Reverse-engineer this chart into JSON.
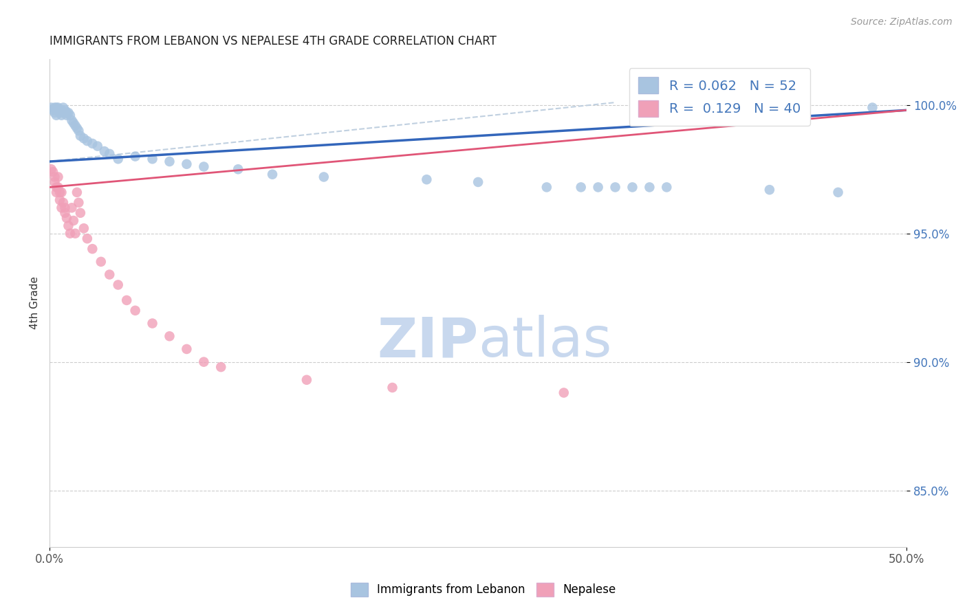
{
  "title": "IMMIGRANTS FROM LEBANON VS NEPALESE 4TH GRADE CORRELATION CHART",
  "source_text": "Source: ZipAtlas.com",
  "ylabel": "4th Grade",
  "x_min": 0.0,
  "x_max": 0.5,
  "y_min": 0.828,
  "y_max": 1.018,
  "x_ticks": [
    0.0,
    0.5
  ],
  "x_tick_labels": [
    "0.0%",
    "50.0%"
  ],
  "y_ticks": [
    0.85,
    0.9,
    0.95,
    1.0
  ],
  "y_tick_labels": [
    "85.0%",
    "90.0%",
    "95.0%",
    "100.0%"
  ],
  "blue_R": 0.062,
  "blue_N": 52,
  "pink_R": 0.129,
  "pink_N": 40,
  "blue_color": "#a8c4e0",
  "pink_color": "#f0a0b8",
  "blue_line_color": "#3366bb",
  "pink_line_color": "#e05577",
  "blue_dash_color": "#c0d0e0",
  "watermark_zip_color": "#c8d8ee",
  "watermark_atlas_color": "#c8d8ee",
  "legend_label_blue": "Immigrants from Lebanon",
  "legend_label_pink": "Nepalese",
  "blue_scatter_x": [
    0.001,
    0.002,
    0.003,
    0.003,
    0.004,
    0.004,
    0.005,
    0.005,
    0.006,
    0.006,
    0.007,
    0.007,
    0.008,
    0.008,
    0.009,
    0.01,
    0.01,
    0.011,
    0.012,
    0.013,
    0.014,
    0.015,
    0.016,
    0.017,
    0.018,
    0.02,
    0.022,
    0.025,
    0.028,
    0.032,
    0.035,
    0.04,
    0.05,
    0.06,
    0.07,
    0.08,
    0.09,
    0.11,
    0.13,
    0.16,
    0.22,
    0.25,
    0.29,
    0.31,
    0.32,
    0.33,
    0.34,
    0.35,
    0.36,
    0.42,
    0.46,
    0.48
  ],
  "blue_scatter_y": [
    0.999,
    0.998,
    0.999,
    0.997,
    0.999,
    0.996,
    0.999,
    0.998,
    0.998,
    0.997,
    0.998,
    0.996,
    0.997,
    0.999,
    0.998,
    0.997,
    0.996,
    0.997,
    0.996,
    0.994,
    0.993,
    0.992,
    0.991,
    0.99,
    0.988,
    0.987,
    0.986,
    0.985,
    0.984,
    0.982,
    0.981,
    0.979,
    0.98,
    0.979,
    0.978,
    0.977,
    0.976,
    0.975,
    0.973,
    0.972,
    0.971,
    0.97,
    0.968,
    0.968,
    0.968,
    0.968,
    0.968,
    0.968,
    0.968,
    0.967,
    0.966,
    0.999
  ],
  "pink_scatter_x": [
    0.001,
    0.002,
    0.003,
    0.003,
    0.004,
    0.004,
    0.005,
    0.005,
    0.006,
    0.006,
    0.007,
    0.007,
    0.008,
    0.009,
    0.009,
    0.01,
    0.011,
    0.012,
    0.013,
    0.014,
    0.015,
    0.016,
    0.017,
    0.018,
    0.02,
    0.022,
    0.025,
    0.03,
    0.035,
    0.04,
    0.045,
    0.05,
    0.06,
    0.07,
    0.08,
    0.09,
    0.1,
    0.15,
    0.2,
    0.3
  ],
  "pink_scatter_y": [
    0.975,
    0.974,
    0.972,
    0.97,
    0.968,
    0.966,
    0.972,
    0.968,
    0.966,
    0.963,
    0.96,
    0.966,
    0.962,
    0.958,
    0.96,
    0.956,
    0.953,
    0.95,
    0.96,
    0.955,
    0.95,
    0.966,
    0.962,
    0.958,
    0.952,
    0.948,
    0.944,
    0.939,
    0.934,
    0.93,
    0.924,
    0.92,
    0.915,
    0.91,
    0.905,
    0.9,
    0.898,
    0.893,
    0.89,
    0.888
  ],
  "blue_line_x": [
    0.0,
    0.5
  ],
  "blue_line_y": [
    0.978,
    0.998
  ],
  "pink_line_x": [
    0.0,
    0.5
  ],
  "pink_line_y": [
    0.968,
    0.998
  ],
  "dash_line_x": [
    0.0,
    0.33
  ],
  "dash_line_y": [
    0.978,
    1.001
  ]
}
